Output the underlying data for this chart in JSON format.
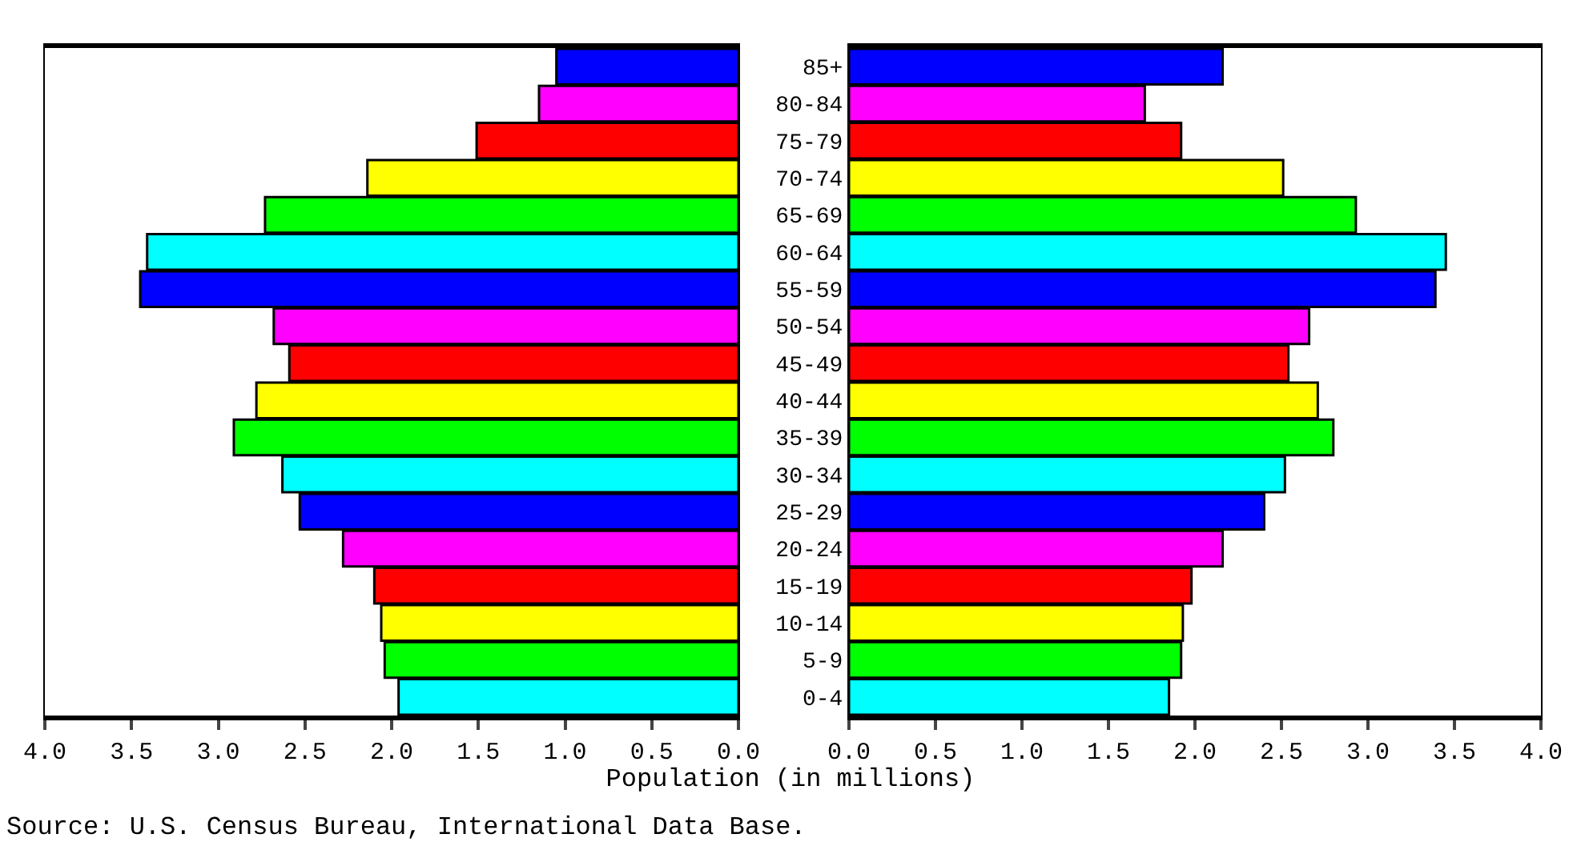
{
  "chart_data": [
    {
      "type": "bar",
      "orientation": "horizontal",
      "xlabel": "Population (in millions)",
      "categories": [
        null,
        null,
        null,
        null,
        null,
        null,
        null,
        null,
        null,
        null,
        null,
        null,
        null,
        null,
        null,
        null,
        null,
        null
      ],
      "values": [
        1.05,
        1.15,
        1.51,
        2.14,
        2.73,
        3.41,
        3.45,
        2.68,
        2.59,
        2.78,
        2.91,
        2.63,
        2.53,
        2.28,
        2.1,
        2.06,
        2.04,
        1.96
      ],
      "colors": [
        "#0000ff",
        "#ff00ff",
        "#ff0000",
        "#ffff00",
        "#00ff00",
        "#00ffff",
        "#0000ff",
        "#ff00ff",
        "#ff0000",
        "#ffff00",
        "#00ff00",
        "#00ffff",
        "#0000ff",
        "#ff00ff",
        "#ff0000",
        "#ffff00",
        "#00ff00",
        "#00ffff"
      ],
      "xlim": [
        4,
        0
      ],
      "xticks": [
        {
          "value": 4,
          "label": "4.0"
        },
        {
          "value": 3.5,
          "label": "3.5"
        },
        {
          "value": 3,
          "label": "3.0"
        },
        {
          "value": 2.5,
          "label": "2.5"
        },
        {
          "value": 2,
          "label": "2.0"
        },
        {
          "value": 1.5,
          "label": "1.5"
        },
        {
          "value": 1,
          "label": "1.0"
        },
        {
          "value": 0.5,
          "label": "0.5"
        },
        {
          "value": 0,
          "label": "0.0"
        }
      ],
      "annotations": [
        "Source: U.S. Census Bureau, International Data Base."
      ]
    },
    {
      "type": "bar",
      "orientation": "horizontal",
      "categories": [
        "85+",
        "80-84",
        "75-79",
        "70-74",
        "65-69",
        "60-64",
        "55-59",
        "50-54",
        "45-49",
        "40-44",
        "35-39",
        "30-34",
        "25-29",
        "20-24",
        "15-19",
        "10-14",
        "5-9",
        "0-4"
      ],
      "values": [
        2.16,
        1.71,
        1.92,
        2.51,
        2.93,
        3.45,
        3.39,
        2.66,
        2.54,
        2.71,
        2.8,
        2.52,
        2.4,
        2.16,
        1.98,
        1.93,
        1.92,
        1.85
      ],
      "colors": [
        "#0000ff",
        "#ff00ff",
        "#ff0000",
        "#ffff00",
        "#00ff00",
        "#00ffff",
        "#0000ff",
        "#ff00ff",
        "#ff0000",
        "#ffff00",
        "#00ff00",
        "#00ffff",
        "#0000ff",
        "#ff00ff",
        "#ff0000",
        "#ffff00",
        "#00ff00",
        "#00ffff"
      ],
      "xlim": [
        0,
        4
      ],
      "xticks": [
        {
          "value": 0,
          "label": "0.0"
        },
        {
          "value": 0.5,
          "label": "0.5"
        },
        {
          "value": 1,
          "label": "1.0"
        },
        {
          "value": 1.5,
          "label": "1.5"
        },
        {
          "value": 2,
          "label": "2.0"
        },
        {
          "value": 2.5,
          "label": "2.5"
        },
        {
          "value": 3,
          "label": "3.0"
        },
        {
          "value": 3.5,
          "label": "3.5"
        },
        {
          "value": 4,
          "label": "4.0"
        }
      ]
    }
  ]
}
